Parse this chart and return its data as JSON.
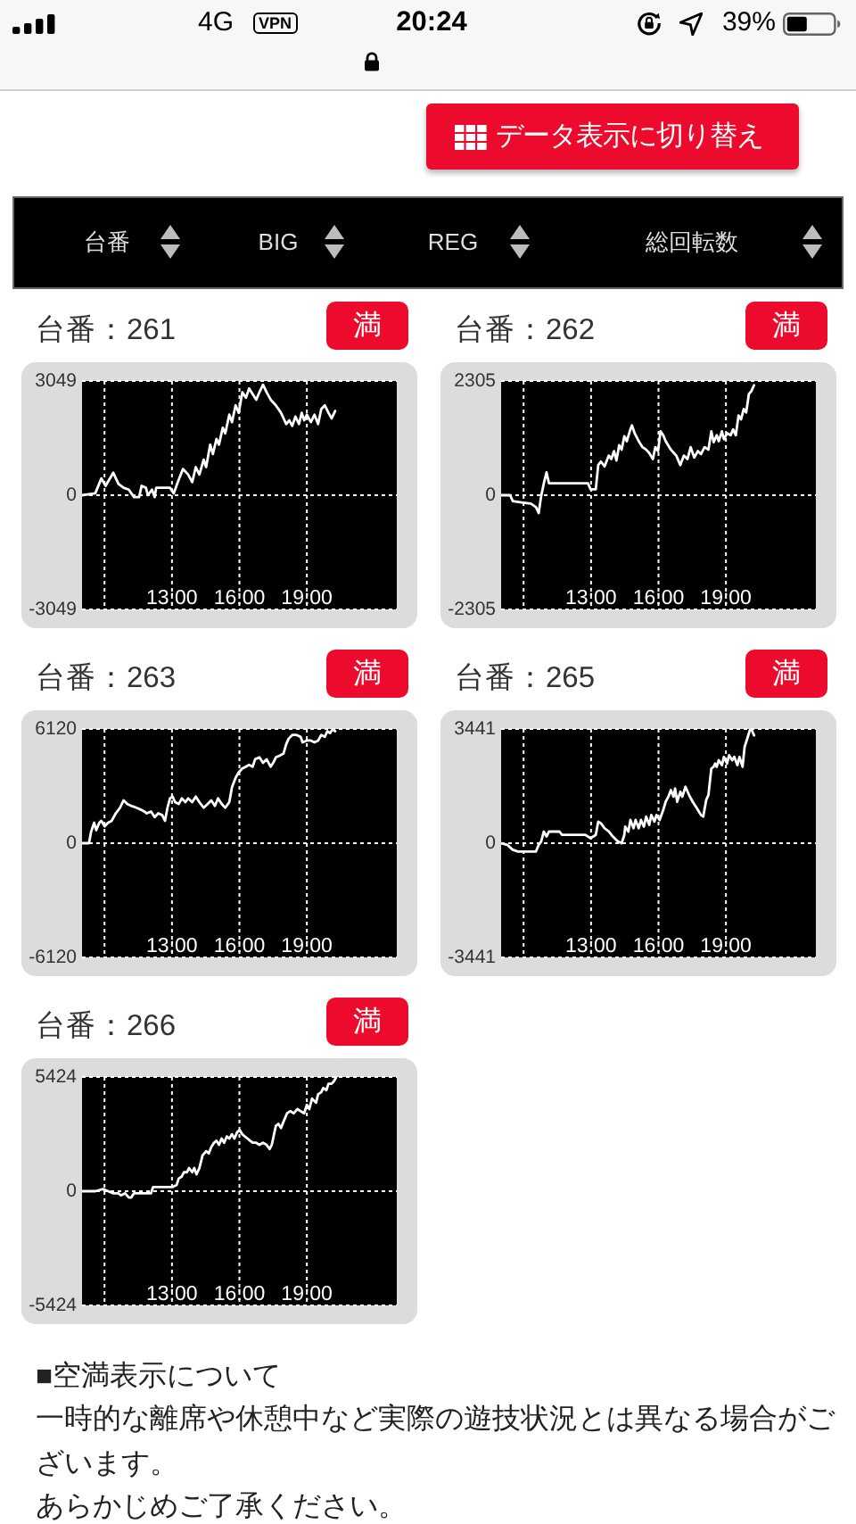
{
  "chart_data": [
    {
      "type": "other",
      "annotations": [
        "4G",
        "VPN",
        "20:24",
        "39%",
        "データ表示に切り替え",
        "台番",
        "BIG",
        "REG",
        "総回転数"
      ]
    },
    {
      "type": "line",
      "title": "台番：261",
      "annotations": [
        "満"
      ],
      "color": "#ffffff",
      "xlim": [
        9,
        23
      ],
      "xticks": [
        {
          "value": 10,
          "label": null
        },
        {
          "value": 13,
          "label": "13:00"
        },
        {
          "value": 16,
          "label": "16:00"
        },
        {
          "value": 19,
          "label": "19:00"
        }
      ],
      "ylim": [
        -3049,
        3049
      ],
      "yticks": [
        -3049,
        0,
        3049
      ],
      "grid": true,
      "x": [
        9.0,
        9.59,
        9.86,
        10.05,
        10.39,
        10.62,
        10.85,
        11.08,
        11.31,
        11.54,
        11.65,
        11.84,
        11.93,
        12.11,
        12.23,
        12.3,
        12.91,
        13.08,
        13.26,
        13.49,
        13.72,
        13.9,
        14.06,
        14.22,
        14.41,
        14.52,
        14.7,
        14.82,
        14.98,
        15.09,
        15.26,
        15.37,
        15.55,
        15.67,
        15.83,
        15.97,
        16.13,
        16.29,
        16.43,
        16.59,
        16.75,
        16.89,
        17.05,
        17.21,
        17.39,
        17.62,
        17.85,
        18.08,
        18.22,
        18.35,
        18.49,
        18.65,
        18.77,
        18.88,
        19.0,
        19.18,
        19.34,
        19.5,
        19.64,
        19.8,
        19.96,
        20.1,
        20.26
      ],
      "values": [
        0,
        50,
        450,
        250,
        600,
        300,
        200,
        150,
        -50,
        -50,
        250,
        200,
        0,
        150,
        -50,
        200,
        200,
        50,
        350,
        700,
        550,
        350,
        750,
        550,
        950,
        750,
        1350,
        1100,
        1500,
        1350,
        1800,
        1650,
        2150,
        1950,
        2400,
        2200,
        2750,
        2600,
        2850,
        2700,
        2550,
        2750,
        2950,
        2750,
        2550,
        2400,
        2200,
        1900,
        2000,
        1850,
        2100,
        1900,
        2200,
        2000,
        2150,
        1950,
        2150,
        1900,
        2300,
        2400,
        2200,
        2050,
        2250
      ]
    },
    {
      "type": "line",
      "title": "台番：262",
      "annotations": [
        "満"
      ],
      "color": "#ffffff",
      "xlim": [
        9,
        23
      ],
      "xticks": [
        {
          "value": 10,
          "label": null
        },
        {
          "value": 13,
          "label": "13:00"
        },
        {
          "value": 16,
          "label": "16:00"
        },
        {
          "value": 19,
          "label": "19:00"
        }
      ],
      "ylim": [
        -2305,
        2305
      ],
      "yticks": [
        -2305,
        0,
        2305
      ],
      "grid": true,
      "x": [
        9.0,
        9.4,
        9.52,
        9.98,
        10.32,
        10.55,
        10.67,
        10.78,
        10.9,
        11.02,
        11.13,
        11.25,
        12.86,
        12.98,
        13.21,
        13.32,
        13.44,
        13.6,
        13.79,
        13.9,
        14.02,
        14.13,
        14.25,
        14.36,
        14.48,
        14.59,
        14.75,
        14.82,
        14.94,
        15.12,
        15.29,
        15.45,
        15.59,
        15.75,
        15.86,
        15.98,
        16.09,
        16.21,
        16.32,
        16.55,
        16.79,
        16.97,
        17.13,
        17.29,
        17.43,
        17.59,
        17.75,
        17.89,
        18.05,
        18.22,
        18.35,
        18.45,
        18.59,
        18.68,
        18.82,
        18.91,
        19.05,
        19.21,
        19.32,
        19.44,
        19.56,
        19.67,
        19.79,
        19.9,
        20.02,
        20.13,
        20.25
      ],
      "values": [
        0,
        0,
        -120,
        -150,
        -170,
        -240,
        -360,
        -20,
        240,
        460,
        240,
        240,
        240,
        120,
        120,
        610,
        680,
        580,
        800,
        730,
        890,
        700,
        1010,
        920,
        1190,
        1090,
        1330,
        1410,
        1250,
        1090,
        970,
        920,
        850,
        730,
        970,
        890,
        1290,
        1210,
        1090,
        920,
        800,
        610,
        800,
        730,
        970,
        760,
        890,
        830,
        970,
        920,
        1290,
        1070,
        1210,
        1090,
        1290,
        1130,
        1250,
        1210,
        1330,
        1210,
        1610,
        1530,
        1740,
        1670,
        2040,
        2100,
        2220
      ]
    },
    {
      "type": "line",
      "title": "台番：263",
      "annotations": [
        "満"
      ],
      "color": "#ffffff",
      "xlim": [
        9,
        23
      ],
      "xticks": [
        {
          "value": 10,
          "label": null
        },
        {
          "value": 13,
          "label": "13:00"
        },
        {
          "value": 16,
          "label": "16:00"
        },
        {
          "value": 19,
          "label": "19:00"
        }
      ],
      "ylim": [
        -6120,
        6120
      ],
      "yticks": [
        -6120,
        0,
        6120
      ],
      "grid": true,
      "x": [
        9.0,
        9.31,
        9.4,
        9.54,
        9.63,
        9.77,
        9.86,
        10.0,
        10.16,
        10.32,
        10.5,
        10.69,
        10.85,
        11.01,
        11.19,
        11.42,
        11.61,
        11.77,
        11.88,
        12.07,
        12.23,
        12.39,
        12.57,
        12.69,
        12.8,
        12.91,
        13.03,
        13.14,
        13.3,
        13.44,
        13.6,
        13.72,
        13.9,
        14.06,
        14.22,
        14.41,
        14.59,
        14.75,
        14.91,
        15.05,
        15.21,
        15.37,
        15.55,
        15.67,
        15.83,
        15.97,
        16.13,
        16.29,
        16.43,
        16.59,
        16.7,
        16.89,
        17.05,
        17.21,
        17.39,
        17.5,
        17.62,
        17.8,
        17.96,
        18.08,
        18.19,
        18.35,
        18.54,
        18.72,
        18.81,
        19.0,
        19.18,
        19.34,
        19.5,
        19.64,
        19.8,
        19.91,
        20.03,
        20.14,
        20.26
      ],
      "values": [
        0,
        0,
        600,
        1100,
        700,
        1100,
        1200,
        900,
        1100,
        1200,
        1600,
        1900,
        2300,
        2100,
        2000,
        1900,
        1800,
        1700,
        1600,
        1700,
        1400,
        1600,
        1500,
        1200,
        1900,
        2400,
        2500,
        2200,
        2100,
        2400,
        2200,
        2400,
        2200,
        2500,
        2200,
        1900,
        2100,
        2300,
        2000,
        2400,
        2100,
        1900,
        2200,
        3000,
        3500,
        3800,
        4000,
        4100,
        4200,
        4100,
        4500,
        4600,
        4300,
        4500,
        4100,
        4300,
        4600,
        4700,
        4800,
        5300,
        5600,
        5800,
        5800,
        5700,
        5400,
        5500,
        5500,
        5400,
        5500,
        5800,
        5700,
        6000,
        5900,
        6100,
        6000
      ]
    },
    {
      "type": "line",
      "title": "台番：265",
      "annotations": [
        "満"
      ],
      "color": "#ffffff",
      "xlim": [
        9,
        23
      ],
      "xticks": [
        {
          "value": 10,
          "label": null
        },
        {
          "value": 13,
          "label": "13:00"
        },
        {
          "value": 16,
          "label": "16:00"
        },
        {
          "value": 19,
          "label": "19:00"
        }
      ],
      "ylim": [
        -3441,
        3441
      ],
      "yticks": [
        -3441,
        0,
        3441
      ],
      "grid": true,
      "x": [
        9.0,
        9.28,
        9.52,
        9.75,
        10.55,
        10.67,
        10.78,
        10.9,
        11.02,
        11.13,
        11.59,
        11.71,
        12.75,
        12.86,
        12.98,
        13.21,
        13.32,
        13.44,
        13.6,
        13.79,
        13.97,
        14.2,
        14.36,
        14.48,
        14.52,
        14.66,
        14.75,
        14.89,
        14.98,
        15.12,
        15.22,
        15.35,
        15.45,
        15.59,
        15.68,
        15.82,
        15.91,
        16.05,
        16.21,
        16.32,
        16.44,
        16.55,
        16.67,
        16.74,
        16.83,
        16.97,
        17.06,
        17.2,
        17.36,
        17.52,
        17.71,
        17.89,
        17.99,
        18.12,
        18.22,
        18.35,
        18.45,
        18.52,
        18.59,
        18.68,
        18.82,
        18.91,
        19.05,
        19.14,
        19.28,
        19.37,
        19.51,
        19.6,
        19.74,
        19.83,
        19.97,
        20.06,
        20.13,
        20.25
      ],
      "values": [
        0,
        -50,
        -200,
        -250,
        -250,
        -50,
        50,
        350,
        200,
        350,
        350,
        250,
        250,
        200,
        150,
        250,
        650,
        600,
        450,
        350,
        200,
        50,
        0,
        250,
        500,
        350,
        700,
        450,
        700,
        450,
        700,
        500,
        800,
        550,
        850,
        650,
        850,
        700,
        1000,
        1250,
        1400,
        1600,
        1400,
        1650,
        1250,
        1550,
        1400,
        1700,
        1450,
        1250,
        1050,
        850,
        800,
        1300,
        1450,
        2250,
        2300,
        2400,
        2300,
        2500,
        2350,
        2600,
        2400,
        2650,
        2500,
        2600,
        2350,
        2600,
        2300,
        2900,
        3200,
        3400,
        3440,
        3250
      ]
    },
    {
      "type": "line",
      "title": "台番：266",
      "annotations": [
        "満"
      ],
      "color": "#ffffff",
      "xlim": [
        9,
        23
      ],
      "xticks": [
        {
          "value": 10,
          "label": null
        },
        {
          "value": 13,
          "label": "13:00"
        },
        {
          "value": 16,
          "label": "16:00"
        },
        {
          "value": 19,
          "label": "19:00"
        }
      ],
      "ylim": [
        -5424,
        5424
      ],
      "yticks": [
        -5424,
        0,
        5424
      ],
      "grid": true,
      "x": [
        9.0,
        9.59,
        9.93,
        10.16,
        10.39,
        10.62,
        10.73,
        10.92,
        11.08,
        11.19,
        11.31,
        11.54,
        11.88,
        12.07,
        12.16,
        12.8,
        13.03,
        13.21,
        13.3,
        13.44,
        13.53,
        13.67,
        13.76,
        13.9,
        13.99,
        14.09,
        14.22,
        14.36,
        14.52,
        14.64,
        14.75,
        14.87,
        14.98,
        15.09,
        15.21,
        15.32,
        15.44,
        15.55,
        15.67,
        15.78,
        15.9,
        16.01,
        16.13,
        16.24,
        16.36,
        16.47,
        16.59,
        16.75,
        16.89,
        17.05,
        17.21,
        17.34,
        17.44,
        17.5,
        17.62,
        17.73,
        17.85,
        17.96,
        18.12,
        18.26,
        18.42,
        18.58,
        18.72,
        18.88,
        19.0,
        19.11,
        19.23,
        19.41,
        19.5,
        19.64,
        19.73,
        19.87,
        19.96,
        20.1,
        20.19,
        20.3
      ],
      "values": [
        0,
        0,
        100,
        0,
        -100,
        -100,
        -200,
        -100,
        -300,
        -300,
        -100,
        -100,
        -100,
        -100,
        200,
        200,
        200,
        300,
        600,
        700,
        900,
        900,
        1100,
        900,
        1100,
        800,
        1100,
        1700,
        1900,
        1800,
        2100,
        2300,
        2400,
        2200,
        2500,
        2300,
        2600,
        2500,
        2700,
        2500,
        2800,
        2900,
        2700,
        2600,
        2500,
        2400,
        2300,
        2300,
        2200,
        2300,
        2200,
        2000,
        2200,
        2500,
        3100,
        3200,
        3000,
        3300,
        3700,
        3800,
        3700,
        3900,
        3800,
        3700,
        4100,
        3900,
        4400,
        4200,
        4600,
        4700,
        4900,
        4800,
        5100,
        5100,
        5200,
        5400
      ]
    },
    {
      "type": "other",
      "annotations": [
        "■空満表示について",
        "一時的な離席や休憩中など実際の遊技状況とは異なる場合がございます。",
        "あらかじめご了承ください。"
      ]
    }
  ]
}
